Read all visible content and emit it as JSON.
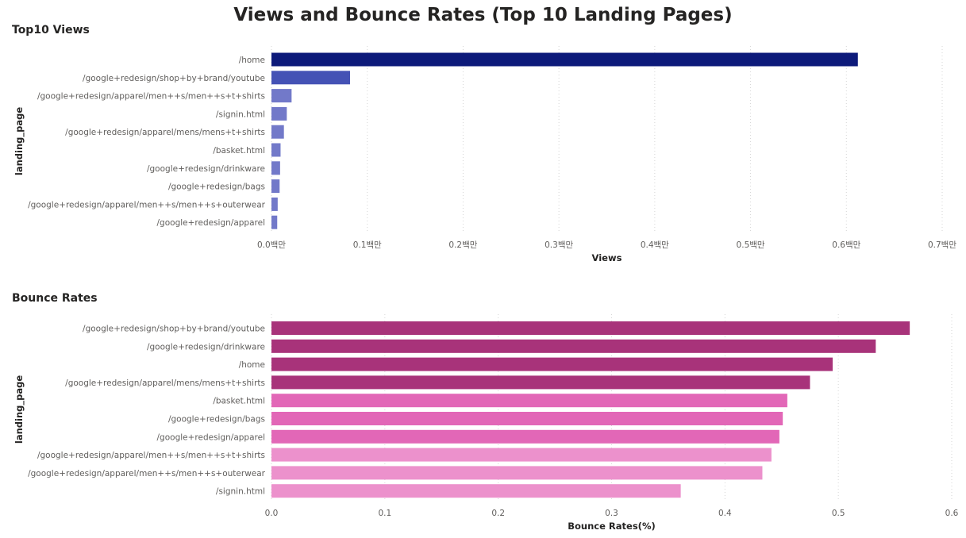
{
  "dashboard": {
    "title": "Views and Bounce Rates (Top 10 Landing Pages)"
  },
  "colors": {
    "views_top": "#0d1a7a",
    "views_second": "#4452b5",
    "views_rest": "#7279c9",
    "bounce_dark": "#a8337a",
    "bounce_mid": "#e267b7",
    "bounce_light": "#ec91cc"
  },
  "chart_data": [
    {
      "type": "bar",
      "orientation": "horizontal",
      "title": "Top10 Views",
      "xlabel": "Views",
      "ylabel": "landing_page",
      "categories": [
        "/home",
        "/google+redesign/shop+by+brand/youtube",
        "/google+redesign/apparel/men++s/men++s+t+shirts",
        "/signin.html",
        "/google+redesign/apparel/mens/mens+t+shirts",
        "/basket.html",
        "/google+redesign/drinkware",
        "/google+redesign/bags",
        "/google+redesign/apparel/men++s/men++s+outerwear",
        "/google+redesign/apparel"
      ],
      "values": [
        612000,
        82000,
        21000,
        16000,
        13000,
        9500,
        9000,
        8500,
        6500,
        6000
      ],
      "xlim": [
        0,
        700000
      ],
      "ticks": [
        0,
        100000,
        200000,
        300000,
        400000,
        500000,
        600000,
        700000
      ],
      "tick_labels": [
        "0.0백만",
        "0.1백만",
        "0.2백만",
        "0.3백만",
        "0.4백만",
        "0.5백만",
        "0.6백만",
        "0.7백만"
      ],
      "grid": true,
      "legend": "none"
    },
    {
      "type": "bar",
      "orientation": "horizontal",
      "title": "Bounce Rates",
      "xlabel": "Bounce Rates(%)",
      "ylabel": "landing_page",
      "categories": [
        "/google+redesign/shop+by+brand/youtube",
        "/google+redesign/drinkware",
        "/home",
        "/google+redesign/apparel/mens/mens+t+shirts",
        "/basket.html",
        "/google+redesign/bags",
        "/google+redesign/apparel",
        "/google+redesign/apparel/men++s/men++s+t+shirts",
        "/google+redesign/apparel/men++s/men++s+outerwear",
        "/signin.html"
      ],
      "values": [
        0.563,
        0.533,
        0.495,
        0.475,
        0.455,
        0.451,
        0.448,
        0.441,
        0.433,
        0.361
      ],
      "xlim": [
        0,
        0.6
      ],
      "ticks": [
        0,
        0.1,
        0.2,
        0.3,
        0.4,
        0.5,
        0.6
      ],
      "tick_labels": [
        "0.0",
        "0.1",
        "0.2",
        "0.3",
        "0.4",
        "0.5",
        "0.6"
      ],
      "grid": true,
      "legend": "none"
    }
  ]
}
